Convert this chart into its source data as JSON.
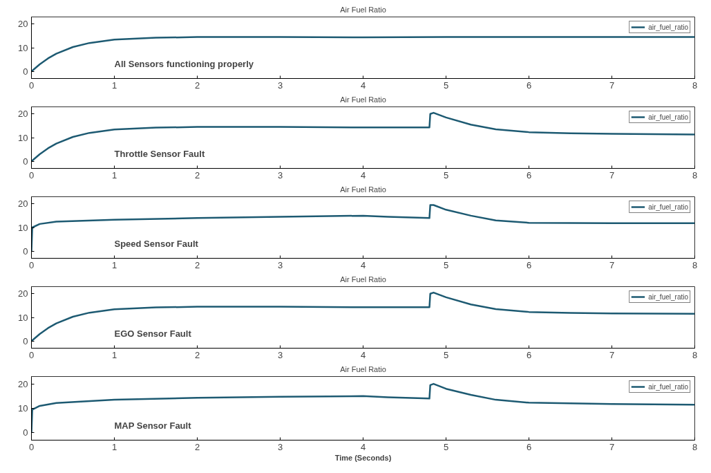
{
  "chart_data": [
    {
      "type": "line",
      "title": "Air Fuel Ratio",
      "x": [
        0,
        0.1,
        0.2,
        0.3,
        0.5,
        0.7,
        1,
        1.5,
        2,
        3,
        4,
        5,
        6,
        7,
        8
      ],
      "series": [
        {
          "name": "air_fuel_ratio",
          "color": "#1d5a72",
          "values": [
            0,
            3,
            5.5,
            7.5,
            10.3,
            12,
            13.4,
            14.2,
            14.5,
            14.5,
            14.4,
            14.5,
            14.5,
            14.5,
            14.5
          ]
        }
      ],
      "annotations": [
        "All Sensors functioning properly"
      ],
      "xlim": [
        0,
        8
      ],
      "xticks": [
        0,
        1,
        2,
        3,
        4,
        5,
        6,
        7,
        8
      ],
      "ylim": [
        -3,
        23
      ],
      "yticks": [
        0,
        10,
        20
      ],
      "legend": "top right",
      "grid": false
    },
    {
      "type": "line",
      "title": "Air Fuel Ratio",
      "x": [
        0,
        0.1,
        0.2,
        0.3,
        0.5,
        0.7,
        1,
        1.5,
        2,
        3,
        4,
        4.8,
        4.81,
        4.85,
        5,
        5.3,
        5.6,
        6,
        6.5,
        7,
        8
      ],
      "series": [
        {
          "name": "air_fuel_ratio",
          "color": "#1d5a72",
          "values": [
            0,
            3,
            5.5,
            7.5,
            10.3,
            12,
            13.4,
            14.2,
            14.5,
            14.5,
            14.3,
            14.3,
            20,
            20.5,
            18.5,
            15.5,
            13.5,
            12.3,
            11.8,
            11.6,
            11.3
          ]
        }
      ],
      "annotations": [
        "Throttle Sensor Fault"
      ],
      "xlim": [
        0,
        8
      ],
      "xticks": [
        0,
        1,
        2,
        3,
        4,
        5,
        6,
        7,
        8
      ],
      "ylim": [
        -3,
        23
      ],
      "yticks": [
        0,
        10,
        20
      ],
      "legend": "top right",
      "grid": false
    },
    {
      "type": "line",
      "title": "Air Fuel Ratio",
      "x": [
        0,
        0.01,
        0.1,
        0.3,
        1,
        2,
        3,
        4,
        4.3,
        4.8,
        4.81,
        4.85,
        5,
        5.3,
        5.6,
        6,
        7,
        8
      ],
      "series": [
        {
          "name": "air_fuel_ratio",
          "color": "#1d5a72",
          "values": [
            0,
            10,
            11.5,
            12.5,
            13.3,
            14,
            14.5,
            15,
            14.5,
            14,
            19.5,
            19.5,
            17.5,
            15,
            13,
            12,
            11.8,
            11.8
          ]
        }
      ],
      "annotations": [
        "Speed Sensor Fault"
      ],
      "xlim": [
        0,
        8
      ],
      "xticks": [
        0,
        1,
        2,
        3,
        4,
        5,
        6,
        7,
        8
      ],
      "ylim": [
        -3,
        23
      ],
      "yticks": [
        0,
        10,
        20
      ],
      "legend": "top right",
      "grid": false
    },
    {
      "type": "line",
      "title": "Air Fuel Ratio",
      "x": [
        0,
        0.1,
        0.2,
        0.3,
        0.5,
        0.7,
        1,
        1.5,
        2,
        3,
        4,
        4.8,
        4.81,
        4.85,
        5,
        5.3,
        5.6,
        6,
        6.5,
        7,
        8
      ],
      "series": [
        {
          "name": "air_fuel_ratio",
          "color": "#1d5a72",
          "values": [
            0,
            3,
            5.5,
            7.5,
            10.3,
            12,
            13.4,
            14.2,
            14.5,
            14.5,
            14.3,
            14.3,
            20,
            20.5,
            18.5,
            15.5,
            13.5,
            12.3,
            11.9,
            11.7,
            11.5
          ]
        }
      ],
      "annotations": [
        "EGO Sensor Fault"
      ],
      "xlim": [
        0,
        8
      ],
      "xticks": [
        0,
        1,
        2,
        3,
        4,
        5,
        6,
        7,
        8
      ],
      "ylim": [
        -3,
        23
      ],
      "yticks": [
        0,
        10,
        20
      ],
      "legend": "top right",
      "grid": false
    },
    {
      "type": "line",
      "title": "Air Fuel Ratio",
      "xlabel": "Time (Seconds)",
      "x": [
        0,
        0.01,
        0.1,
        0.3,
        1,
        2,
        3,
        4,
        4.3,
        4.8,
        4.81,
        4.85,
        5,
        5.3,
        5.6,
        6,
        7,
        8
      ],
      "series": [
        {
          "name": "air_fuel_ratio",
          "color": "#1d5a72",
          "values": [
            0,
            9.5,
            11,
            12.2,
            13.5,
            14.3,
            14.7,
            15,
            14.5,
            14,
            19.5,
            20,
            18,
            15.5,
            13.5,
            12.3,
            11.8,
            11.5
          ]
        }
      ],
      "annotations": [
        "MAP Sensor Fault"
      ],
      "xlim": [
        0,
        8
      ],
      "xticks": [
        0,
        1,
        2,
        3,
        4,
        5,
        6,
        7,
        8
      ],
      "ylim": [
        -3,
        23
      ],
      "yticks": [
        0,
        10,
        20
      ],
      "legend": "top right",
      "grid": false
    }
  ]
}
